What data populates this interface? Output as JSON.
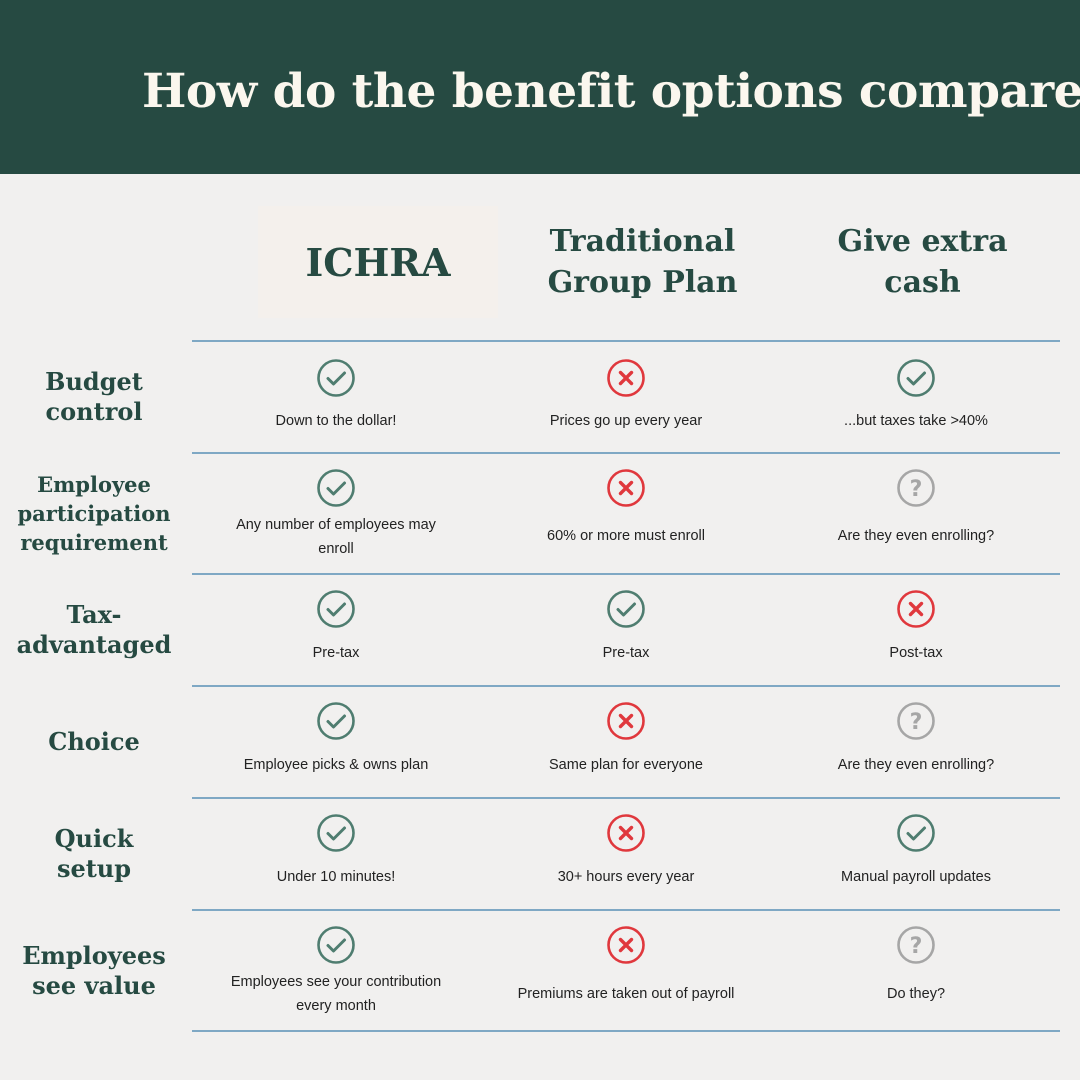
{
  "title": "How do the benefit options compare?",
  "columns": {
    "ichra": "ICHRA",
    "group_l1": "Traditional",
    "group_l2": "Group Plan",
    "cash_l1": "Give extra",
    "cash_l2": "cash"
  },
  "colors": {
    "header_bg": "#264a42",
    "check": "#4f7d70",
    "cross": "#e0383d",
    "question": "#a6a6a6",
    "divider": "#7fa8c4"
  },
  "rows": [
    {
      "label_l1": "Budget",
      "label_l2": "control",
      "cells": [
        {
          "icon": "check-icon",
          "text": "Down to the dollar!"
        },
        {
          "icon": "x-icon",
          "text": "Prices go up every year"
        },
        {
          "icon": "check-icon",
          "text": "...but taxes take >40%"
        }
      ]
    },
    {
      "label_l1": "Employee",
      "label_l2": "participation",
      "label_l3": "requirement",
      "cells": [
        {
          "icon": "check-icon",
          "text_l1": "Any number of employees may",
          "text_l2": "enroll"
        },
        {
          "icon": "x-icon",
          "text": "60% or more must enroll"
        },
        {
          "icon": "question-icon",
          "text": "Are they even enrolling?"
        }
      ]
    },
    {
      "label_l1": "Tax-",
      "label_l2": "advantaged",
      "cells": [
        {
          "icon": "check-icon",
          "text": "Pre-tax"
        },
        {
          "icon": "check-icon",
          "text": "Pre-tax"
        },
        {
          "icon": "x-icon",
          "text": "Post-tax"
        }
      ]
    },
    {
      "label_l1": "Choice",
      "cells": [
        {
          "icon": "check-icon",
          "text": "Employee picks & owns plan"
        },
        {
          "icon": "x-icon",
          "text": "Same plan for everyone"
        },
        {
          "icon": "question-icon",
          "text": "Are they even enrolling?"
        }
      ]
    },
    {
      "label_l1": "Quick",
      "label_l2": "setup",
      "cells": [
        {
          "icon": "check-icon",
          "text": "Under 10 minutes!"
        },
        {
          "icon": "x-icon",
          "text": "30+ hours every year"
        },
        {
          "icon": "check-icon",
          "text": "Manual payroll updates"
        }
      ]
    },
    {
      "label_l1": "Employees",
      "label_l2": "see value",
      "cells": [
        {
          "icon": "check-icon",
          "text_l1": "Employees see your contribution",
          "text_l2": "every month"
        },
        {
          "icon": "x-icon",
          "text": "Premiums are taken out of payroll"
        },
        {
          "icon": "question-icon",
          "text": "Do they?"
        }
      ]
    }
  ]
}
